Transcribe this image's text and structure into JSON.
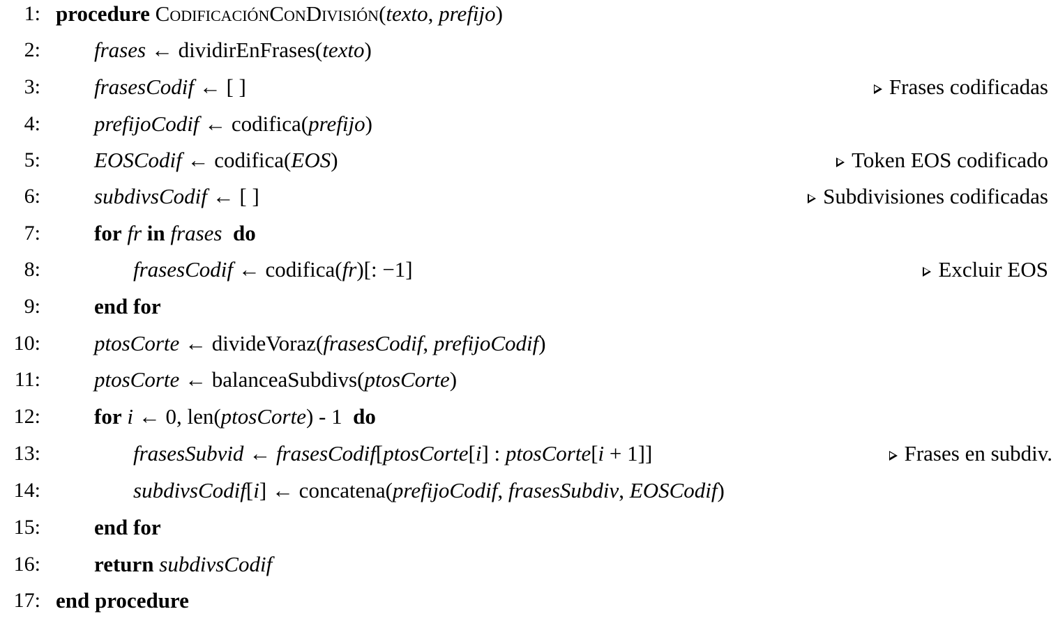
{
  "algorithm": {
    "lines": [
      {
        "num": "1:",
        "indent": 0,
        "code": "procedure CodificaciónConDivisión(texto, prefijo)",
        "comment": ""
      },
      {
        "num": "2:",
        "indent": 1,
        "code": "frases ← dividirEnFrases(texto)",
        "comment": ""
      },
      {
        "num": "3:",
        "indent": 1,
        "code": "frasesCodif ← [ ]",
        "comment": "Frases codificadas"
      },
      {
        "num": "4:",
        "indent": 1,
        "code": "prefijoCodif ← codifica(prefijo)",
        "comment": ""
      },
      {
        "num": "5:",
        "indent": 1,
        "code": "EOSCodif ← codifica(EOS)",
        "comment": "Token EOS codificado"
      },
      {
        "num": "6:",
        "indent": 1,
        "code": "subdivsCodif ← [ ]",
        "comment": "Subdivisiones codificadas"
      },
      {
        "num": "7:",
        "indent": 1,
        "code": "for fr in frases  do",
        "comment": ""
      },
      {
        "num": "8:",
        "indent": 2,
        "code": "frasesCodif ← codifica(fr)[: −1]",
        "comment": "Excluir EOS"
      },
      {
        "num": "9:",
        "indent": 1,
        "code": "end for",
        "comment": ""
      },
      {
        "num": "10:",
        "indent": 1,
        "code": "ptosCorte ← divideVoraz(frasesCodif, prefijoCodif)",
        "comment": ""
      },
      {
        "num": "11:",
        "indent": 1,
        "code": "ptosCorte ← balanceaSubdivs(ptosCorte)",
        "comment": ""
      },
      {
        "num": "12:",
        "indent": 1,
        "code": "for i ← 0, len(ptosCorte) - 1  do",
        "comment": ""
      },
      {
        "num": "13:",
        "indent": 2,
        "code": "frasesSubvid ← frasesCodif[ptosCorte[i] : ptosCorte[i + 1]]",
        "comment": "Frases en subdiv."
      },
      {
        "num": "14:",
        "indent": 2,
        "code": "subdivsCodif[i] ← concatena(prefijoCodif, frasesSubdiv, EOSCodif)",
        "comment": ""
      },
      {
        "num": "15:",
        "indent": 1,
        "code": "end for",
        "comment": ""
      },
      {
        "num": "16:",
        "indent": 1,
        "code": "return subdivsCodif",
        "comment": ""
      },
      {
        "num": "17:",
        "indent": 0,
        "code": "end procedure",
        "comment": ""
      }
    ]
  }
}
